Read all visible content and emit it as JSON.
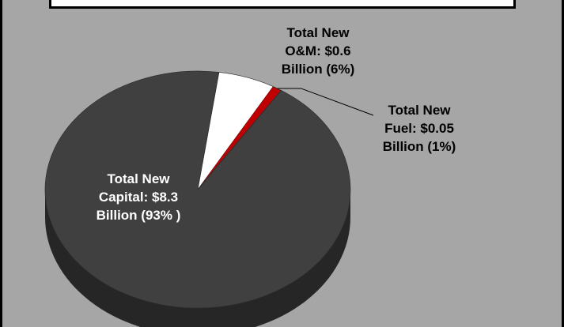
{
  "chart_data": {
    "type": "pie",
    "title": "",
    "slices": [
      {
        "name": "Total New Capital",
        "value": 8.3,
        "percent": 93,
        "color": "#404040",
        "label_lines": [
          "Total New",
          "Capital: $8.3",
          "Billion (93% )"
        ]
      },
      {
        "name": "Total New O&M",
        "value": 0.6,
        "percent": 6,
        "color": "#ffffff",
        "label_lines": [
          "Total New",
          "O&M: $0.6",
          "Billion (6%)"
        ]
      },
      {
        "name": "Total New Fuel",
        "value": 0.05,
        "percent": 1,
        "color": "#c00000",
        "label_lines": [
          "Total New",
          "Fuel: $0.05",
          "Billion (1%)"
        ]
      }
    ],
    "colors": {
      "background": "#a6a6a6",
      "side": "#262626",
      "capital_label": "#ffffff",
      "outer_label": "#000000"
    }
  }
}
